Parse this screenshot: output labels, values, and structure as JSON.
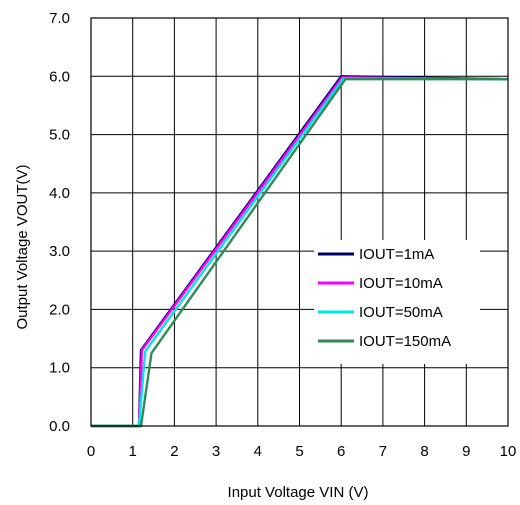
{
  "chart_data": {
    "type": "line",
    "xlabel": "Input Voltage VIN (V)",
    "ylabel": "Output Voltage VOUT(V)",
    "xlim": [
      0,
      10
    ],
    "ylim": [
      0,
      7
    ],
    "grid": true,
    "legend_position": "lower-right",
    "x_ticks": [
      "0",
      "1",
      "2",
      "3",
      "4",
      "5",
      "6",
      "7",
      "8",
      "9",
      "10"
    ],
    "y_ticks": [
      "0.0",
      "1.0",
      "2.0",
      "3.0",
      "4.0",
      "5.0",
      "6.0",
      "7.0"
    ],
    "series": [
      {
        "name": "IOUT=1mA",
        "color": "#000066",
        "x": [
          0,
          1.15,
          1.2,
          6.0,
          10
        ],
        "y": [
          0,
          0,
          1.3,
          6.0,
          5.95
        ]
      },
      {
        "name": "IOUT=10mA",
        "color": "#ff00ff",
        "x": [
          0,
          1.15,
          1.22,
          6.02,
          10
        ],
        "y": [
          0,
          0,
          1.3,
          5.98,
          5.95
        ]
      },
      {
        "name": "IOUT=50mA",
        "color": "#00e5e5",
        "x": [
          0,
          1.15,
          1.3,
          6.05,
          10
        ],
        "y": [
          0,
          0,
          1.28,
          5.96,
          5.95
        ]
      },
      {
        "name": "IOUT=150mA",
        "color": "#2e8b57",
        "x": [
          0,
          1.2,
          1.45,
          6.1,
          10
        ],
        "y": [
          0,
          0,
          1.25,
          5.95,
          5.95
        ]
      }
    ]
  }
}
